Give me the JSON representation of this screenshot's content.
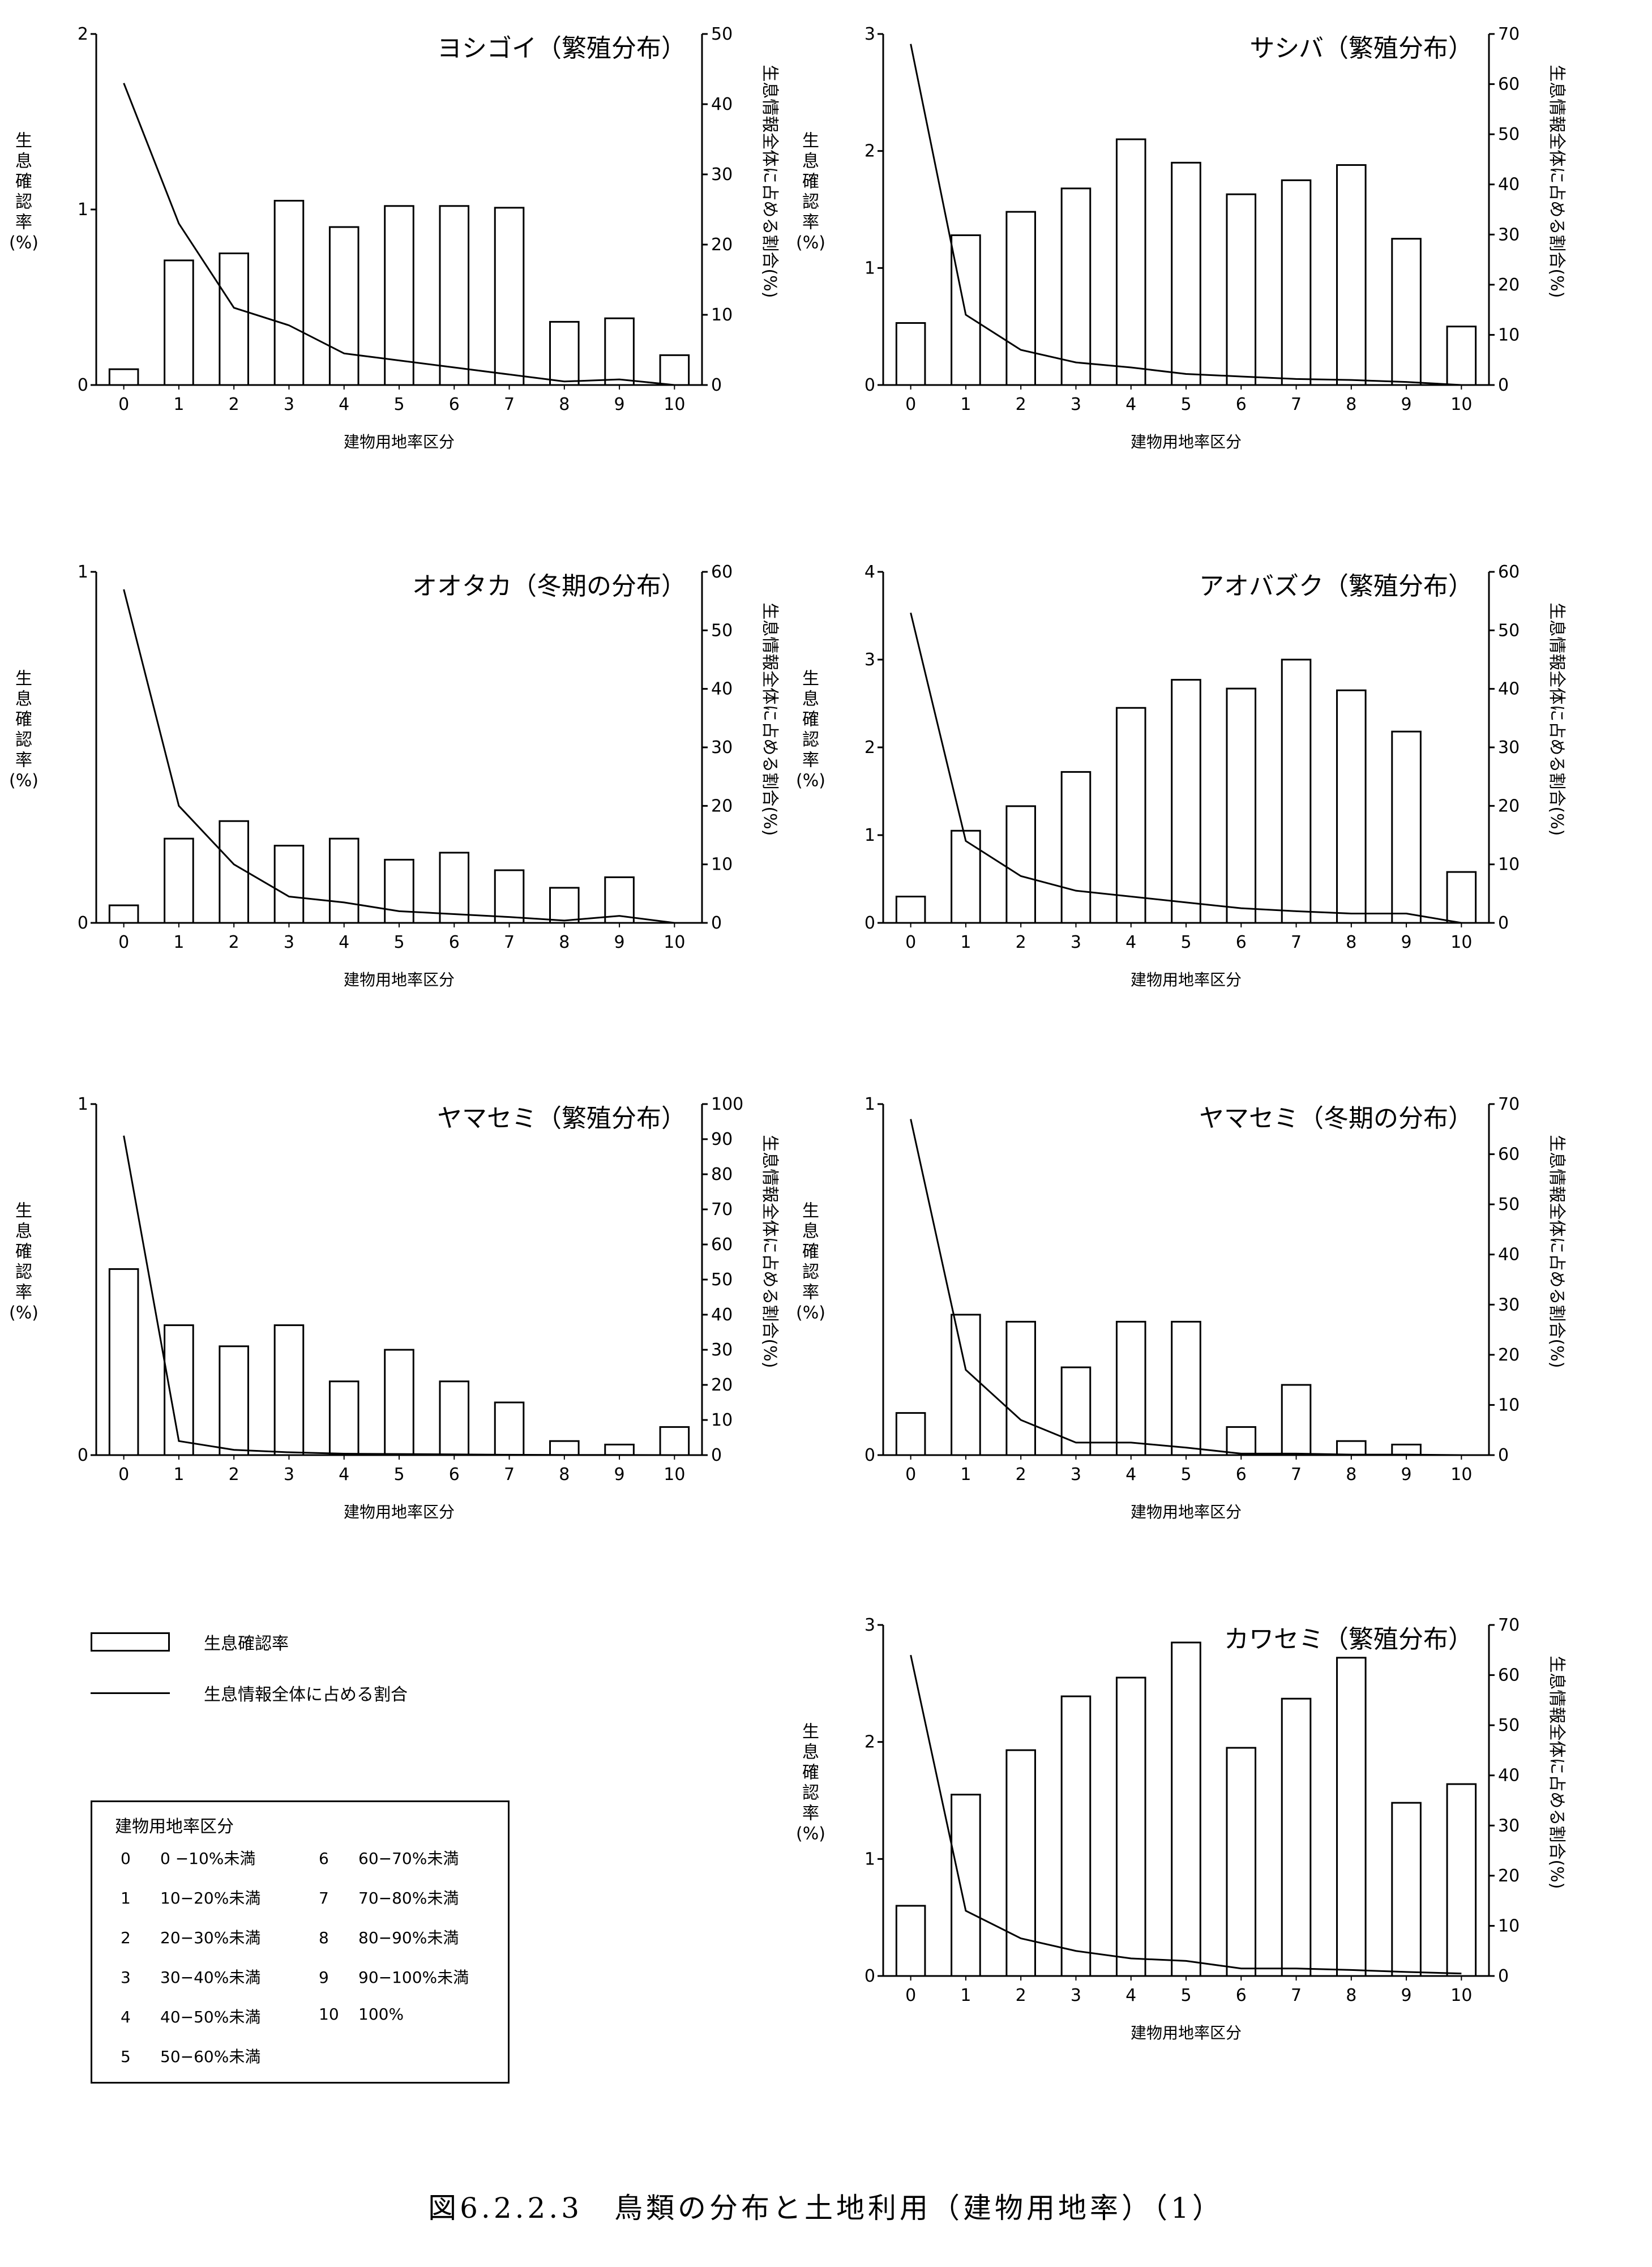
{
  "chart_data": [
    {
      "type": "bar",
      "title": "ヨシゴイ（繁殖分布）",
      "xlabel": "建物用地率区分",
      "ylabel_left": [
        "生",
        "息",
        "確",
        "認",
        "率",
        "(%)"
      ],
      "ylabel_right": "生息情報全体に占める割合(%)",
      "categories": [
        "0",
        "1",
        "2",
        "3",
        "4",
        "5",
        "6",
        "7",
        "8",
        "9",
        "10"
      ],
      "ylim_left": [
        0,
        2
      ],
      "yticks_left": [
        "0",
        "1",
        "2"
      ],
      "ylim_right": [
        0,
        50
      ],
      "yticks_right": [
        "0",
        "10",
        "20",
        "30",
        "40",
        "50"
      ],
      "series": [
        {
          "type": "bar",
          "axis": "left",
          "values": [
            0.09,
            0.71,
            0.75,
            1.05,
            0.9,
            1.02,
            1.02,
            1.01,
            0.36,
            0.38,
            0.17
          ]
        },
        {
          "type": "line",
          "axis": "right",
          "values": [
            43,
            23,
            11,
            8.5,
            4.5,
            3.5,
            2.5,
            1.5,
            0.5,
            0.8,
            0
          ]
        }
      ]
    },
    {
      "type": "bar",
      "title": "サシバ（繁殖分布）",
      "xlabel": "建物用地率区分",
      "ylabel_left": [
        "生",
        "息",
        "確",
        "認",
        "率",
        "(%)"
      ],
      "ylabel_right": "生息情報全体に占める割合(%)",
      "categories": [
        "0",
        "1",
        "2",
        "3",
        "4",
        "5",
        "6",
        "7",
        "8",
        "9",
        "10"
      ],
      "ylim_left": [
        0,
        3
      ],
      "yticks_left": [
        "0",
        "1",
        "2",
        "3"
      ],
      "ylim_right": [
        0,
        70
      ],
      "yticks_right": [
        "0",
        "10",
        "20",
        "30",
        "40",
        "50",
        "60",
        "70"
      ],
      "series": [
        {
          "type": "bar",
          "axis": "left",
          "values": [
            0.53,
            1.28,
            1.48,
            1.68,
            2.1,
            1.9,
            1.63,
            1.75,
            1.88,
            1.25,
            0.5
          ]
        },
        {
          "type": "line",
          "axis": "right",
          "values": [
            68,
            14,
            7,
            4.5,
            3.5,
            2.2,
            1.7,
            1.2,
            1.0,
            0.6,
            0
          ]
        }
      ]
    },
    {
      "type": "bar",
      "title": "オオタカ（冬期の分布）",
      "xlabel": "建物用地率区分",
      "ylabel_left": [
        "生",
        "息",
        "確",
        "認",
        "率",
        "(%)"
      ],
      "ylabel_right": "生息情報全体に占める割合(%)",
      "categories": [
        "0",
        "1",
        "2",
        "3",
        "4",
        "5",
        "6",
        "7",
        "8",
        "9",
        "10"
      ],
      "ylim_left": [
        0,
        1
      ],
      "yticks_left": [
        "0",
        "1"
      ],
      "ylim_right": [
        0,
        60
      ],
      "yticks_right": [
        "0",
        "10",
        "20",
        "30",
        "40",
        "50",
        "60"
      ],
      "series": [
        {
          "type": "bar",
          "axis": "left",
          "values": [
            0.05,
            0.24,
            0.29,
            0.22,
            0.24,
            0.18,
            0.2,
            0.15,
            0.1,
            0.13,
            0
          ]
        },
        {
          "type": "line",
          "axis": "right",
          "values": [
            57,
            20,
            10,
            4.5,
            3.5,
            2.0,
            1.5,
            1.0,
            0.4,
            1.2,
            0
          ]
        }
      ]
    },
    {
      "type": "bar",
      "title": "アオバズク（繁殖分布）",
      "xlabel": "建物用地率区分",
      "ylabel_left": [
        "生",
        "息",
        "確",
        "認",
        "率",
        "(%)"
      ],
      "ylabel_right": "生息情報全体に占める割合(%)",
      "categories": [
        "0",
        "1",
        "2",
        "3",
        "4",
        "5",
        "6",
        "7",
        "8",
        "9",
        "10"
      ],
      "ylim_left": [
        0,
        4
      ],
      "yticks_left": [
        "0",
        "1",
        "2",
        "3",
        "4"
      ],
      "ylim_right": [
        0,
        60
      ],
      "yticks_right": [
        "0",
        "10",
        "20",
        "30",
        "40",
        "50",
        "60"
      ],
      "series": [
        {
          "type": "bar",
          "axis": "left",
          "values": [
            0.3,
            1.05,
            1.33,
            1.72,
            2.45,
            2.77,
            2.67,
            3.0,
            2.65,
            2.18,
            0.58
          ]
        },
        {
          "type": "line",
          "axis": "right",
          "values": [
            53,
            14,
            8,
            5.5,
            4.5,
            3.5,
            2.5,
            2.0,
            1.6,
            1.6,
            0
          ]
        }
      ]
    },
    {
      "type": "bar",
      "title": "ヤマセミ（繁殖分布）",
      "xlabel": "建物用地率区分",
      "ylabel_left": [
        "生",
        "息",
        "確",
        "認",
        "率",
        "(%)"
      ],
      "ylabel_right": "生息情報全体に占める割合(%)",
      "categories": [
        "0",
        "1",
        "2",
        "3",
        "4",
        "5",
        "6",
        "7",
        "8",
        "9",
        "10"
      ],
      "ylim_left": [
        0,
        1
      ],
      "yticks_left": [
        "0",
        "1"
      ],
      "ylim_right": [
        0,
        100
      ],
      "yticks_right": [
        "0",
        "10",
        "20",
        "30",
        "40",
        "50",
        "60",
        "70",
        "80",
        "90",
        "100"
      ],
      "series": [
        {
          "type": "bar",
          "axis": "left",
          "values": [
            0.53,
            0.37,
            0.31,
            0.37,
            0.21,
            0.3,
            0.21,
            0.15,
            0.04,
            0.03,
            0.08
          ]
        },
        {
          "type": "line",
          "axis": "right",
          "values": [
            91,
            4,
            1.5,
            0.8,
            0.4,
            0.3,
            0.2,
            0.1,
            0.05,
            0.05,
            0
          ]
        }
      ]
    },
    {
      "type": "bar",
      "title": "ヤマセミ（冬期の分布）",
      "xlabel": "建物用地率区分",
      "ylabel_left": [
        "生",
        "息",
        "確",
        "認",
        "率",
        "(%)"
      ],
      "ylabel_right": "生息情報全体に占める割合(%)",
      "categories": [
        "0",
        "1",
        "2",
        "3",
        "4",
        "5",
        "6",
        "7",
        "8",
        "9",
        "10"
      ],
      "ylim_left": [
        0,
        1
      ],
      "yticks_left": [
        "0",
        "1"
      ],
      "ylim_right": [
        0,
        70
      ],
      "yticks_right": [
        "0",
        "10",
        "20",
        "30",
        "40",
        "50",
        "60",
        "70"
      ],
      "series": [
        {
          "type": "bar",
          "axis": "left",
          "values": [
            0.12,
            0.4,
            0.38,
            0.25,
            0.38,
            0.38,
            0.08,
            0.2,
            0.04,
            0.03,
            0
          ]
        },
        {
          "type": "line",
          "axis": "right",
          "values": [
            67,
            17,
            7,
            2.5,
            2.5,
            1.5,
            0.3,
            0.3,
            0.1,
            0.1,
            0
          ]
        }
      ]
    },
    {
      "type": "bar",
      "title": "カワセミ（繁殖分布）",
      "xlabel": "建物用地率区分",
      "ylabel_left": [
        "生",
        "息",
        "確",
        "認",
        "率",
        "(%)"
      ],
      "ylabel_right": "生息情報全体に占める割合(%)",
      "categories": [
        "0",
        "1",
        "2",
        "3",
        "4",
        "5",
        "6",
        "7",
        "8",
        "9",
        "10"
      ],
      "ylim_left": [
        0,
        3
      ],
      "yticks_left": [
        "0",
        "1",
        "2",
        "3"
      ],
      "ylim_right": [
        0,
        70
      ],
      "yticks_right": [
        "0",
        "10",
        "20",
        "30",
        "40",
        "50",
        "60",
        "70"
      ],
      "series": [
        {
          "type": "bar",
          "axis": "left",
          "values": [
            0.6,
            1.55,
            1.93,
            2.39,
            2.55,
            2.85,
            1.95,
            2.37,
            2.72,
            1.48,
            1.64
          ]
        },
        {
          "type": "line",
          "axis": "right",
          "values": [
            64,
            13,
            7.5,
            5,
            3.5,
            3,
            1.5,
            1.5,
            1.2,
            0.8,
            0.5
          ]
        }
      ]
    }
  ],
  "legend": {
    "bar_label": "生息確認率",
    "line_label": "生息情報全体に占める割合"
  },
  "class_table": {
    "title": "建物用地率区分",
    "items": [
      {
        "key": "0",
        "label": "0 −10%未満"
      },
      {
        "key": "1",
        "label": "10−20%未満"
      },
      {
        "key": "2",
        "label": "20−30%未満"
      },
      {
        "key": "3",
        "label": "30−40%未満"
      },
      {
        "key": "4",
        "label": "40−50%未満"
      },
      {
        "key": "5",
        "label": "50−60%未満"
      },
      {
        "key": "6",
        "label": "60−70%未満"
      },
      {
        "key": "7",
        "label": "70−80%未満"
      },
      {
        "key": "8",
        "label": "80−90%未満"
      },
      {
        "key": "9",
        "label": "90−100%未満"
      },
      {
        "key": "10",
        "label": "100%"
      }
    ]
  },
  "caption": "図6.2.2.3　鳥類の分布と土地利用（建物用地率）（1）"
}
